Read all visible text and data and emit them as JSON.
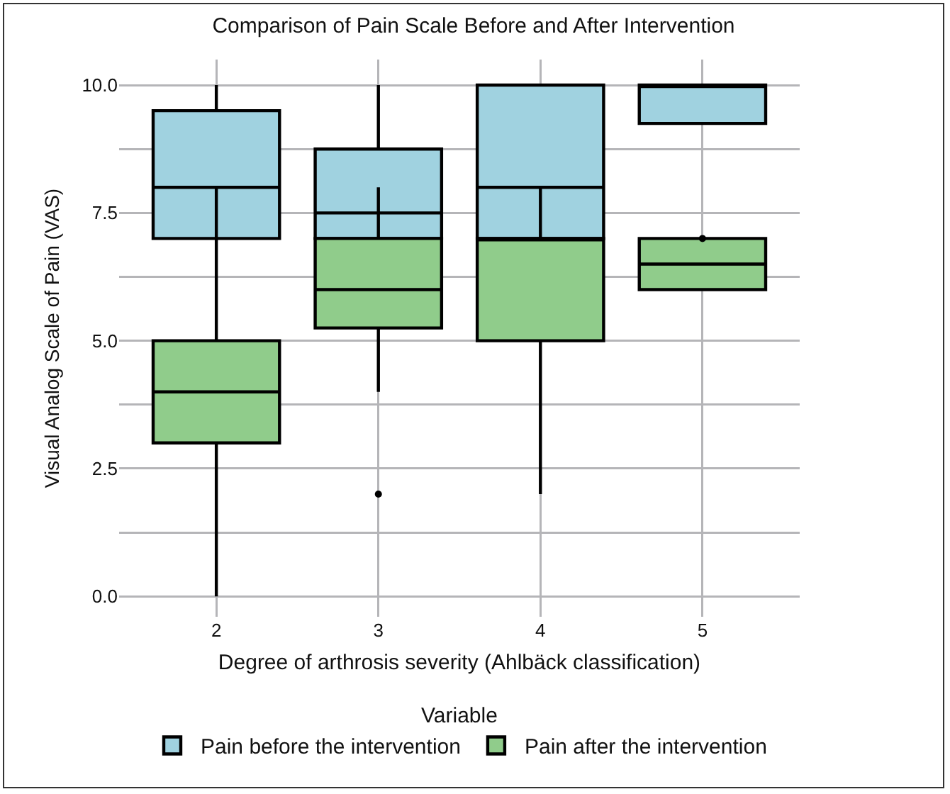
{
  "chart_data": {
    "type": "box",
    "title": "Comparison of Pain Scale Before and After Intervention",
    "xlabel": "Degree of arthrosis severity (Ahlbäck classification)",
    "ylabel": "Visual Analog Scale of Pain (VAS)",
    "legend_title": "Variable",
    "categories": [
      "2",
      "3",
      "4",
      "5"
    ],
    "series": [
      {
        "name": "Pain before the intervention",
        "color": "#a0d2e0",
        "boxes": [
          {
            "low": null,
            "q1": 7,
            "median": 8,
            "q3": 9.5,
            "high": 10
          },
          {
            "low": null,
            "q1": 7,
            "median": 7.5,
            "q3": 8.75,
            "high": 10
          },
          {
            "low": null,
            "q1": 7,
            "median": 8,
            "q3": 10,
            "high": 10
          },
          {
            "low": 9.25,
            "q1": 9.25,
            "median": 10,
            "q3": 10,
            "high": 10
          }
        ]
      },
      {
        "name": "Pain after the intervention",
        "color": "#90cc8b",
        "boxes": [
          {
            "low": 0,
            "q1": 3,
            "median": 4,
            "q3": 5,
            "high": 8
          },
          {
            "low": 4,
            "q1": 5.25,
            "median": 6,
            "q3": 7,
            "high": 8,
            "outliers": [
              2
            ]
          },
          {
            "low": 2,
            "q1": 5,
            "median": 7,
            "q3": 7,
            "high": 8
          },
          {
            "low": 6,
            "q1": 6,
            "median": 6.5,
            "q3": 7,
            "high": 7,
            "outliers": [
              7
            ]
          }
        ]
      }
    ],
    "ylim": [
      -0.4,
      10.5
    ],
    "yticks": [
      {
        "value": 0,
        "label": "0.0"
      },
      {
        "value": 1.25,
        "label": null
      },
      {
        "value": 2.5,
        "label": "2.5"
      },
      {
        "value": 3.75,
        "label": null
      },
      {
        "value": 5,
        "label": "5.0"
      },
      {
        "value": 6.25,
        "label": null
      },
      {
        "value": 7.5,
        "label": "7.5"
      },
      {
        "value": 8.75,
        "label": null
      },
      {
        "value": 10,
        "label": "10.0"
      }
    ],
    "grid": true,
    "legend": "bottom"
  }
}
